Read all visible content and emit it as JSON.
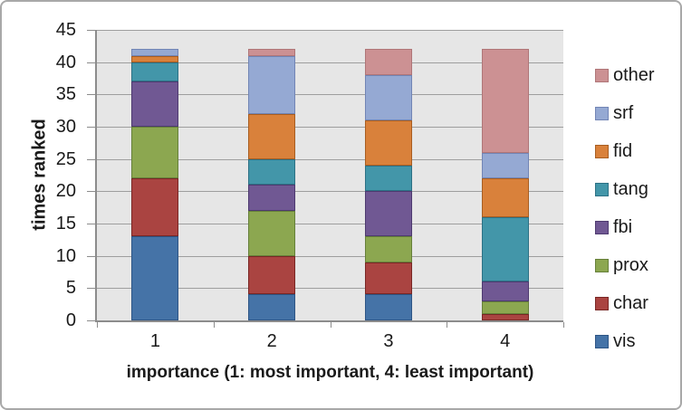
{
  "chart_data": {
    "type": "bar",
    "stacked": true,
    "title": "",
    "xlabel": "importance (1: most important, 4: least important)",
    "ylabel": "times ranked",
    "categories": [
      "1",
      "2",
      "3",
      "4"
    ],
    "series": [
      {
        "name": "vis",
        "fill": "#4573A7",
        "border": "#2E5585",
        "values": [
          13,
          4,
          4,
          0
        ]
      },
      {
        "name": "char",
        "fill": "#AA4441",
        "border": "#7A2725",
        "values": [
          9,
          6,
          5,
          1
        ]
      },
      {
        "name": "prox",
        "fill": "#8CA750",
        "border": "#66803A",
        "values": [
          8,
          7,
          4,
          2
        ]
      },
      {
        "name": "fbi",
        "fill": "#705893",
        "border": "#4E3A70",
        "values": [
          7,
          4,
          7,
          3
        ]
      },
      {
        "name": "tang",
        "fill": "#4396A9",
        "border": "#2D7185",
        "values": [
          3,
          4,
          4,
          10
        ]
      },
      {
        "name": "fid",
        "fill": "#D9813B",
        "border": "#A85E22",
        "values": [
          1,
          7,
          7,
          6
        ]
      },
      {
        "name": "srf",
        "fill": "#95A9D3",
        "border": "#7285B5",
        "values": [
          1,
          9,
          7,
          4
        ]
      },
      {
        "name": "other",
        "fill": "#CC9193",
        "border": "#AF7678",
        "values": [
          0,
          1,
          4,
          16
        ]
      }
    ],
    "ylim": [
      0,
      45
    ],
    "yticks": [
      "0",
      "5",
      "10",
      "15",
      "20",
      "25",
      "30",
      "35",
      "40",
      "45"
    ],
    "grid": true,
    "legend_position": "right",
    "legend_order_top_to_bottom": [
      "other",
      "srf",
      "fid",
      "tang",
      "fbi",
      "prox",
      "char",
      "vis"
    ]
  },
  "style": {
    "plot_bg": "#E6E6E6",
    "gridline_color": "#9E9E9E",
    "axis_color": "#8C8C8C",
    "frame_border": "#A8A8A8",
    "text_color": "#1A1A1A"
  }
}
